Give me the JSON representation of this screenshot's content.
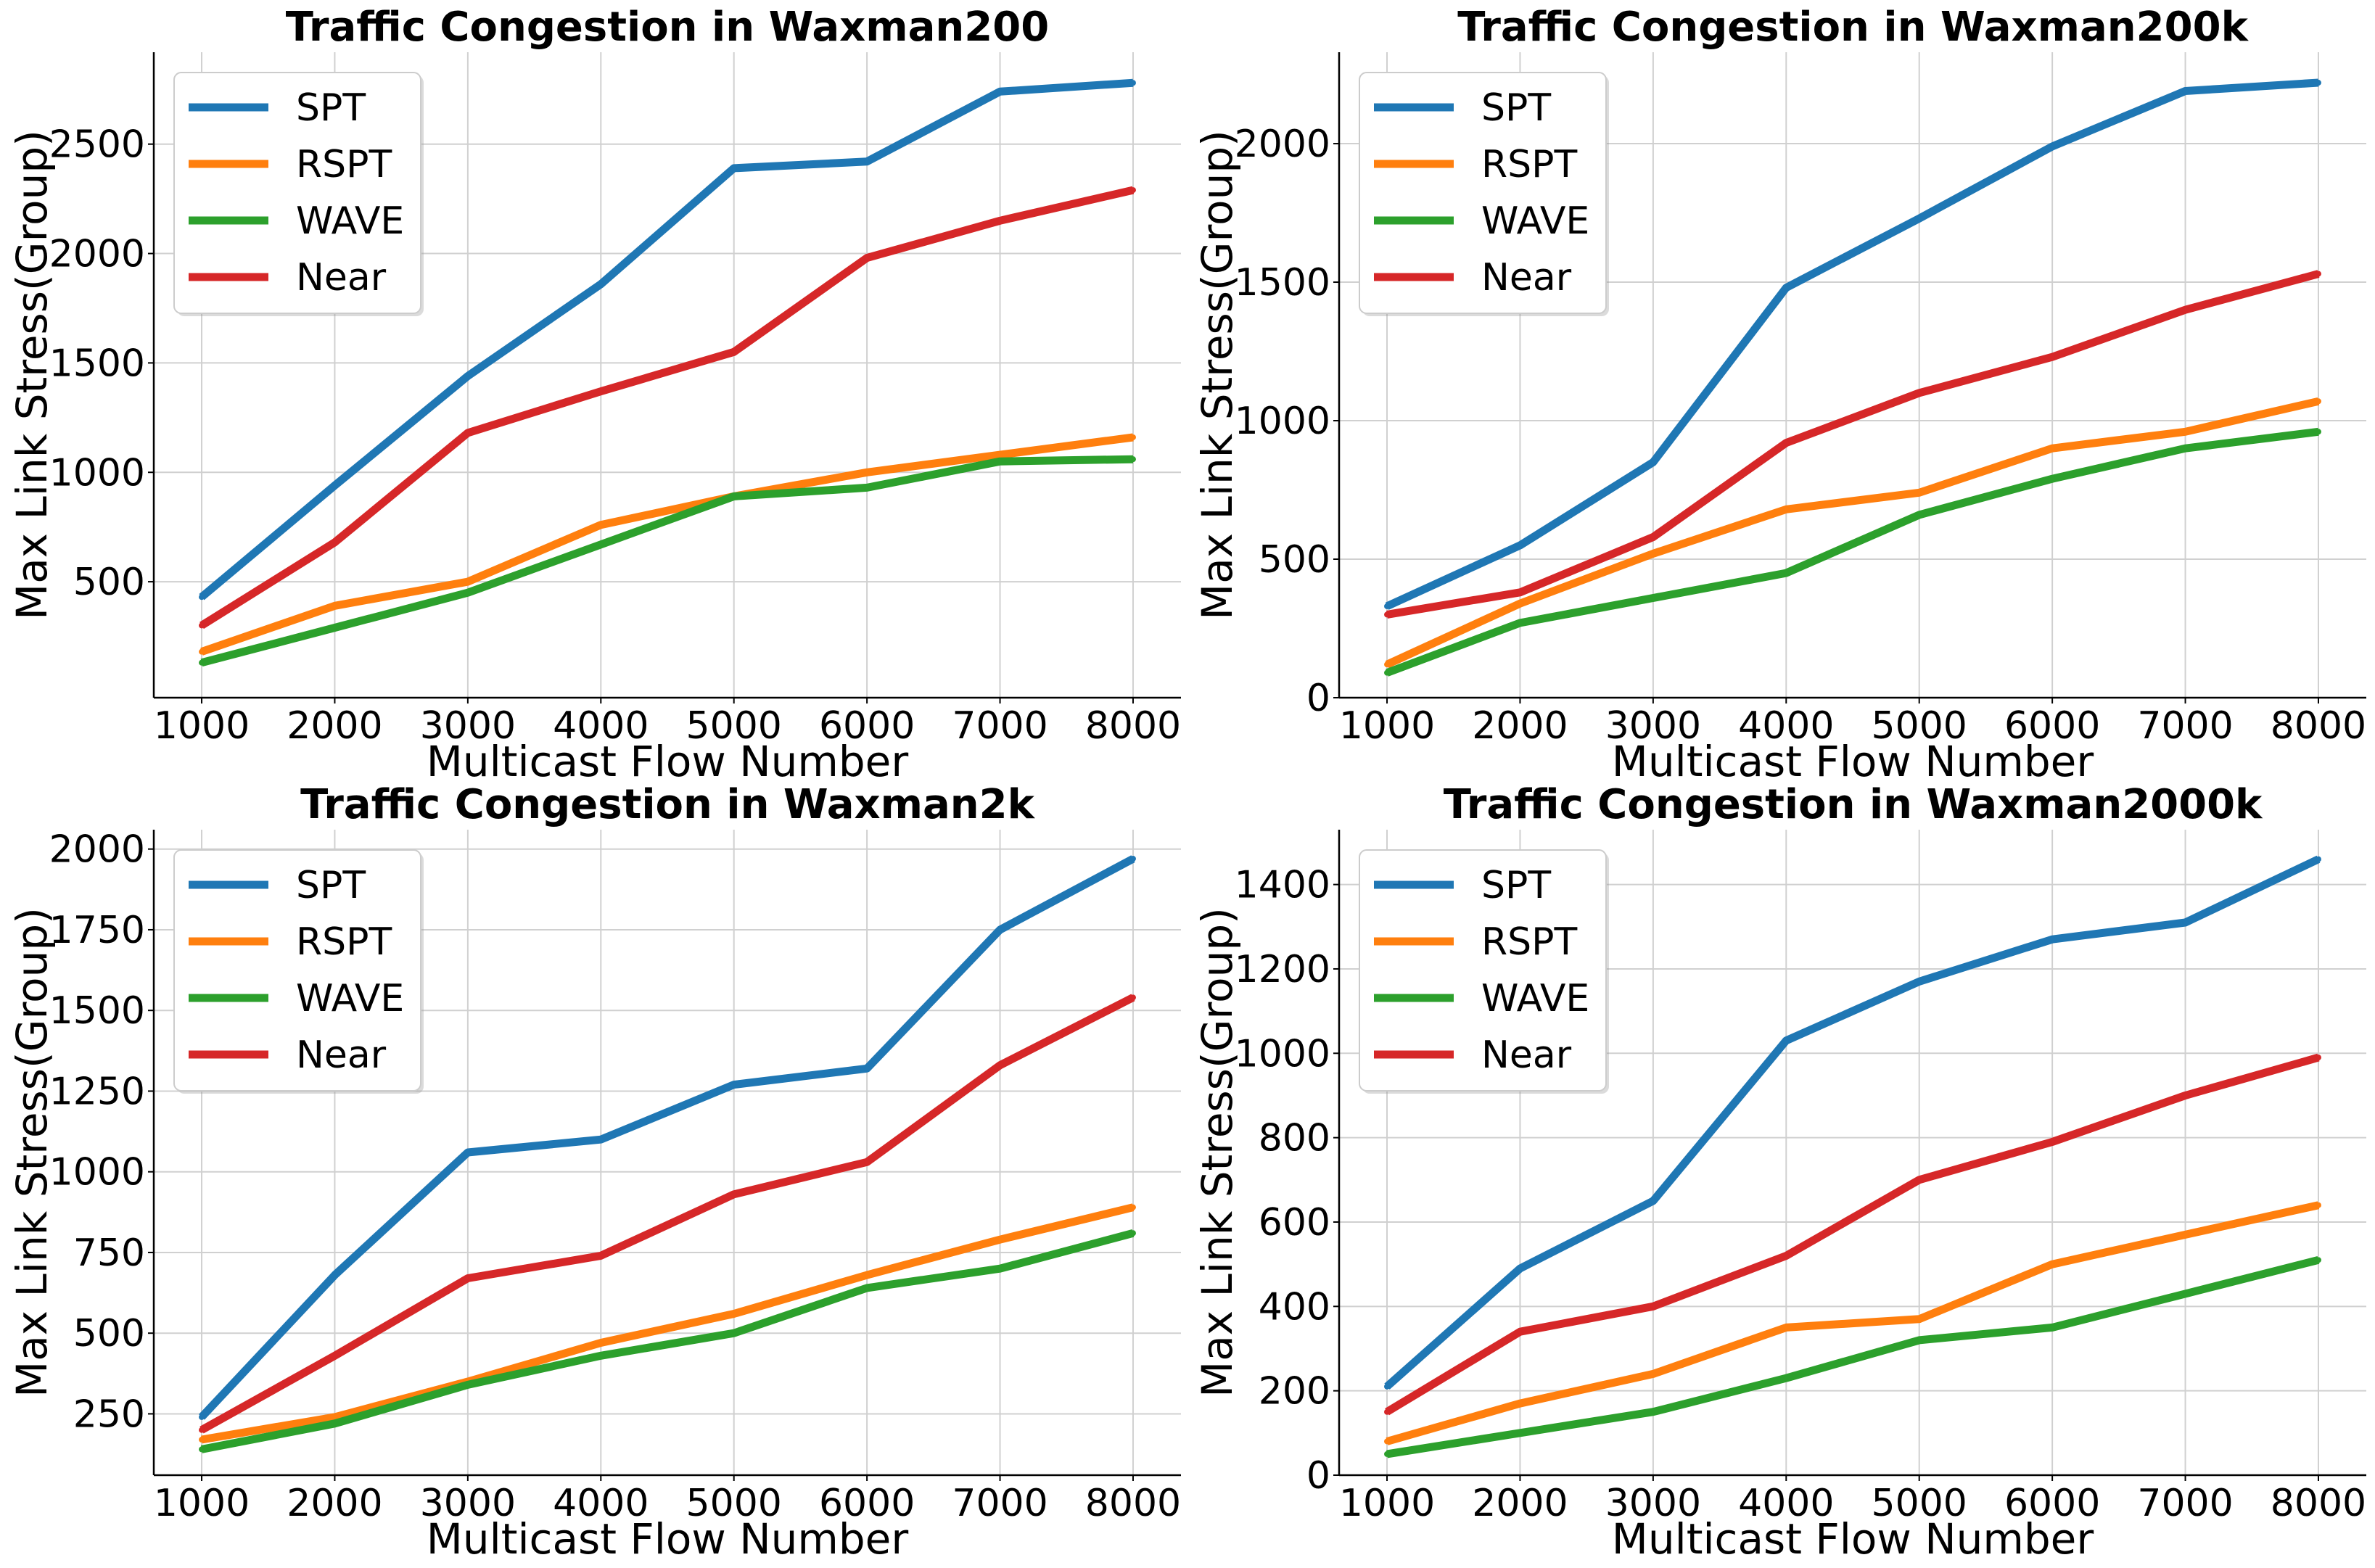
{
  "colors": {
    "SPT": "#1f77b4",
    "RSPT": "#ff7f0e",
    "WAVE": "#2ca02c",
    "Near": "#d62728",
    "grid": "#d0d0d0"
  },
  "chart_data": [
    {
      "type": "line",
      "title": "Traffic Congestion in Waxman200",
      "xlabel": "Multicast Flow Number",
      "ylabel": "Max Link Stress(Group)",
      "x": [
        1000,
        2000,
        3000,
        4000,
        5000,
        6000,
        7000,
        8000
      ],
      "xticks": [
        "1000",
        "2000",
        "3000",
        "4000",
        "5000",
        "6000",
        "7000",
        "8000"
      ],
      "yticks": [
        "500",
        "1000",
        "1500",
        "2000",
        "2500"
      ],
      "ytick_values": [
        500,
        1000,
        1500,
        2000,
        2500
      ],
      "xlim": [
        640,
        8360
      ],
      "ylim": [
        -30,
        2920
      ],
      "grid": true,
      "legend": "top-left",
      "series": [
        {
          "name": "SPT",
          "values": [
            430,
            940,
            1440,
            1860,
            2390,
            2420,
            2740,
            2780
          ]
        },
        {
          "name": "RSPT",
          "values": [
            180,
            390,
            500,
            760,
            890,
            1000,
            1080,
            1160
          ]
        },
        {
          "name": "WAVE",
          "values": [
            130,
            290,
            450,
            670,
            890,
            930,
            1050,
            1060
          ]
        },
        {
          "name": "Near",
          "values": [
            300,
            680,
            1180,
            1370,
            1550,
            1980,
            2150,
            2290
          ]
        }
      ]
    },
    {
      "type": "line",
      "title": "Traffic Congestion in Waxman200k",
      "xlabel": "Multicast Flow Number",
      "ylabel": "Max Link Stress(Group)",
      "x": [
        1000,
        2000,
        3000,
        4000,
        5000,
        6000,
        7000,
        8000
      ],
      "xticks": [
        "1000",
        "2000",
        "3000",
        "4000",
        "5000",
        "6000",
        "7000",
        "8000"
      ],
      "yticks": [
        "0",
        "500",
        "1000",
        "1500",
        "2000"
      ],
      "ytick_values": [
        0,
        500,
        1000,
        1500,
        2000
      ],
      "xlim": [
        640,
        8360
      ],
      "ylim": [
        0,
        2330
      ],
      "grid": true,
      "legend": "top-left",
      "series": [
        {
          "name": "SPT",
          "values": [
            330,
            550,
            850,
            1480,
            1730,
            1990,
            2190,
            2220
          ]
        },
        {
          "name": "RSPT",
          "values": [
            120,
            340,
            520,
            680,
            740,
            900,
            960,
            1070
          ]
        },
        {
          "name": "WAVE",
          "values": [
            90,
            270,
            360,
            450,
            660,
            790,
            900,
            960
          ]
        },
        {
          "name": "Near",
          "values": [
            300,
            380,
            580,
            920,
            1100,
            1230,
            1400,
            1530
          ]
        }
      ]
    },
    {
      "type": "line",
      "title": "Traffic Congestion in Waxman2k",
      "xlabel": "Multicast Flow Number",
      "ylabel": "Max Link Stress(Group)",
      "x": [
        1000,
        2000,
        3000,
        4000,
        5000,
        6000,
        7000,
        8000
      ],
      "xticks": [
        "1000",
        "2000",
        "3000",
        "4000",
        "5000",
        "6000",
        "7000",
        "8000"
      ],
      "yticks": [
        "250",
        "500",
        "750",
        "1000",
        "1250",
        "1500",
        "1750",
        "2000"
      ],
      "ytick_values": [
        250,
        500,
        750,
        1000,
        1250,
        1500,
        1750,
        2000
      ],
      "xlim": [
        640,
        8360
      ],
      "ylim": [
        60,
        2060
      ],
      "grid": true,
      "legend": "top-left",
      "series": [
        {
          "name": "SPT",
          "values": [
            240,
            680,
            1060,
            1100,
            1270,
            1320,
            1750,
            1970
          ]
        },
        {
          "name": "RSPT",
          "values": [
            170,
            240,
            350,
            470,
            560,
            680,
            790,
            890
          ]
        },
        {
          "name": "WAVE",
          "values": [
            140,
            220,
            340,
            430,
            500,
            640,
            700,
            810
          ]
        },
        {
          "name": "Near",
          "values": [
            200,
            430,
            670,
            740,
            930,
            1030,
            1330,
            1540
          ]
        }
      ]
    },
    {
      "type": "line",
      "title": "Traffic Congestion in Waxman2000k",
      "xlabel": "Multicast Flow Number",
      "ylabel": "Max Link Stress(Group)",
      "x": [
        1000,
        2000,
        3000,
        4000,
        5000,
        6000,
        7000,
        8000
      ],
      "xticks": [
        "1000",
        "2000",
        "3000",
        "4000",
        "5000",
        "6000",
        "7000",
        "8000"
      ],
      "yticks": [
        "0",
        "200",
        "400",
        "600",
        "800",
        "1000",
        "1200",
        "1400"
      ],
      "ytick_values": [
        0,
        200,
        400,
        600,
        800,
        1000,
        1200,
        1400
      ],
      "xlim": [
        640,
        8360
      ],
      "ylim": [
        0,
        1530
      ],
      "grid": true,
      "legend": "top-left",
      "series": [
        {
          "name": "SPT",
          "values": [
            210,
            490,
            650,
            1030,
            1170,
            1270,
            1310,
            1460
          ]
        },
        {
          "name": "RSPT",
          "values": [
            80,
            170,
            240,
            350,
            370,
            500,
            570,
            640
          ]
        },
        {
          "name": "WAVE",
          "values": [
            50,
            100,
            150,
            230,
            320,
            350,
            430,
            510
          ]
        },
        {
          "name": "Near",
          "values": [
            150,
            340,
            400,
            520,
            700,
            790,
            900,
            990
          ]
        }
      ]
    }
  ]
}
